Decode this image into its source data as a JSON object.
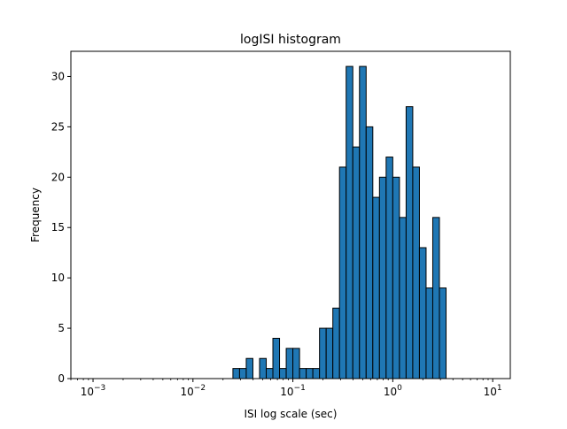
{
  "chart_data": {
    "type": "bar",
    "title": "logISI histogram",
    "xlabel": "ISI log scale (sec)",
    "ylabel": "Frequency",
    "x_scale": "log",
    "xlim": [
      0.0006,
      15
    ],
    "ylim": [
      0,
      32.5
    ],
    "grid": false,
    "legend": "none",
    "bar_color": "#1f77b4",
    "edge_color": "#000000",
    "x_ticks": [
      {
        "value": 0.001,
        "base": "10",
        "exp": "−3"
      },
      {
        "value": 0.01,
        "base": "10",
        "exp": "−2"
      },
      {
        "value": 0.1,
        "base": "10",
        "exp": "−1"
      },
      {
        "value": 1,
        "base": "10",
        "exp": "0"
      },
      {
        "value": 10,
        "base": "10",
        "exp": "1"
      }
    ],
    "y_ticks": [
      0,
      5,
      10,
      15,
      20,
      25,
      30
    ],
    "bin_edges": [
      0.001,
      0.0011659,
      0.0013594,
      0.0015849,
      0.0018478,
      0.0021544,
      0.0025119,
      0.0029286,
      0.0034145,
      0.0039811,
      0.0046416,
      0.0054117,
      0.0063096,
      0.0073564,
      0.008577,
      0.01,
      0.011659,
      0.013594,
      0.015849,
      0.018478,
      0.021544,
      0.025119,
      0.029286,
      0.034145,
      0.039811,
      0.046416,
      0.054117,
      0.063096,
      0.073564,
      0.08577,
      0.1,
      0.11659,
      0.13594,
      0.15849,
      0.18478,
      0.21544,
      0.25119,
      0.29286,
      0.34145,
      0.39811,
      0.46416,
      0.54117,
      0.63096,
      0.73564,
      0.8577,
      1.0,
      1.1659,
      1.3594,
      1.5849,
      1.8478,
      2.1544,
      2.5119,
      2.9286,
      3.4145,
      3.9811,
      4.6416,
      5.4117,
      6.3096,
      7.3564,
      8.577,
      10.0
    ],
    "counts": [
      0,
      0,
      0,
      0,
      0,
      0,
      0,
      0,
      0,
      0,
      0,
      0,
      0,
      0,
      0,
      0,
      0,
      0,
      0,
      0,
      0,
      1,
      1,
      2,
      0,
      2,
      1,
      4,
      1,
      3,
      3,
      1,
      1,
      1,
      5,
      5,
      7,
      21,
      31,
      23,
      31,
      25,
      18,
      20,
      22,
      20,
      16,
      27,
      21,
      13,
      9,
      16,
      9,
      0,
      0,
      0,
      0,
      0,
      0,
      0
    ]
  }
}
